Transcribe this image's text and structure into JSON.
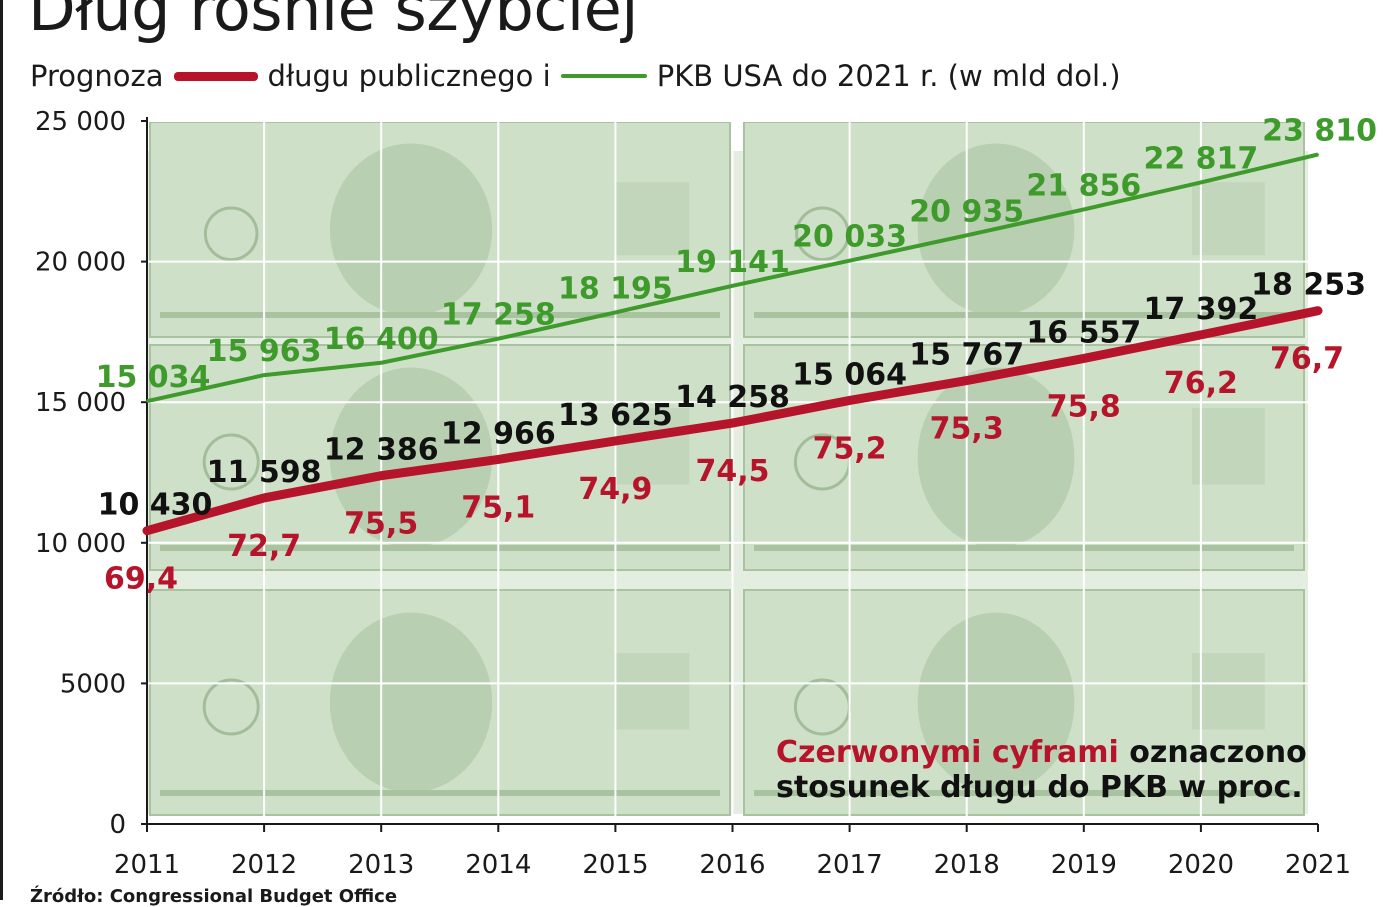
{
  "title": "Dług rośnie szybciej",
  "subtitle": {
    "prefix": "Prognoza",
    "debt_text": "długu publicznego i",
    "gdp_text": "PKB USA do 2021 r. (w mld dol.)"
  },
  "note": {
    "red_part": "Czerwonymi cyframi",
    "rest_line1": " oznaczono",
    "line2": "stosunek długu do PKB w proc."
  },
  "source": "Źródło: Congressional Budget Office",
  "colors": {
    "debt": "#b5142a",
    "gdp": "#3f9a2c",
    "ratio": "#b5142a",
    "background": "money-bills-green",
    "bill_tint": "#cfe0c8"
  },
  "chart_data": {
    "type": "line",
    "title": "Dług rośnie szybciej",
    "xlabel": "",
    "ylabel": "",
    "x": [
      2011,
      2012,
      2013,
      2014,
      2015,
      2016,
      2017,
      2018,
      2019,
      2020,
      2021
    ],
    "x_tick_labels": [
      "2011",
      "2012",
      "2013",
      "2014",
      "2015",
      "2016",
      "2017",
      "2018",
      "2019",
      "2020",
      "2021"
    ],
    "ylim": [
      0,
      25000
    ],
    "y_ticks": [
      0,
      5000,
      10000,
      15000,
      20000,
      25000
    ],
    "y_tick_labels": [
      "0",
      "5000",
      "10 000",
      "15 000",
      "20 000",
      "25 000"
    ],
    "grid": true,
    "series": [
      {
        "name": "PKB USA",
        "values": [
          15034,
          15963,
          16400,
          17258,
          18195,
          19141,
          20033,
          20935,
          21856,
          22817,
          23810
        ],
        "labels": [
          "15 034",
          "15 963",
          "16 400",
          "17 258",
          "18 195",
          "19 141",
          "20 033",
          "20 935",
          "21 856",
          "22 817",
          "23 810"
        ]
      },
      {
        "name": "dług publiczny",
        "values": [
          10430,
          11598,
          12386,
          12966,
          13625,
          14258,
          15064,
          15767,
          16557,
          17392,
          18253
        ],
        "labels": [
          "10 430",
          "11 598",
          "12 386",
          "12 966",
          "13 625",
          "14 258",
          "15 064",
          "15 767",
          "16 557",
          "17 392",
          "18 253"
        ]
      }
    ],
    "ratio_percent": [
      69.4,
      72.7,
      75.5,
      75.1,
      74.9,
      74.5,
      75.2,
      75.3,
      75.8,
      76.2,
      76.7
    ],
    "ratio_labels": [
      "69,4",
      "72,7",
      "75,5",
      "75,1",
      "74,9",
      "74,5",
      "75,2",
      "75,3",
      "75,8",
      "76,2",
      "76,7"
    ]
  }
}
